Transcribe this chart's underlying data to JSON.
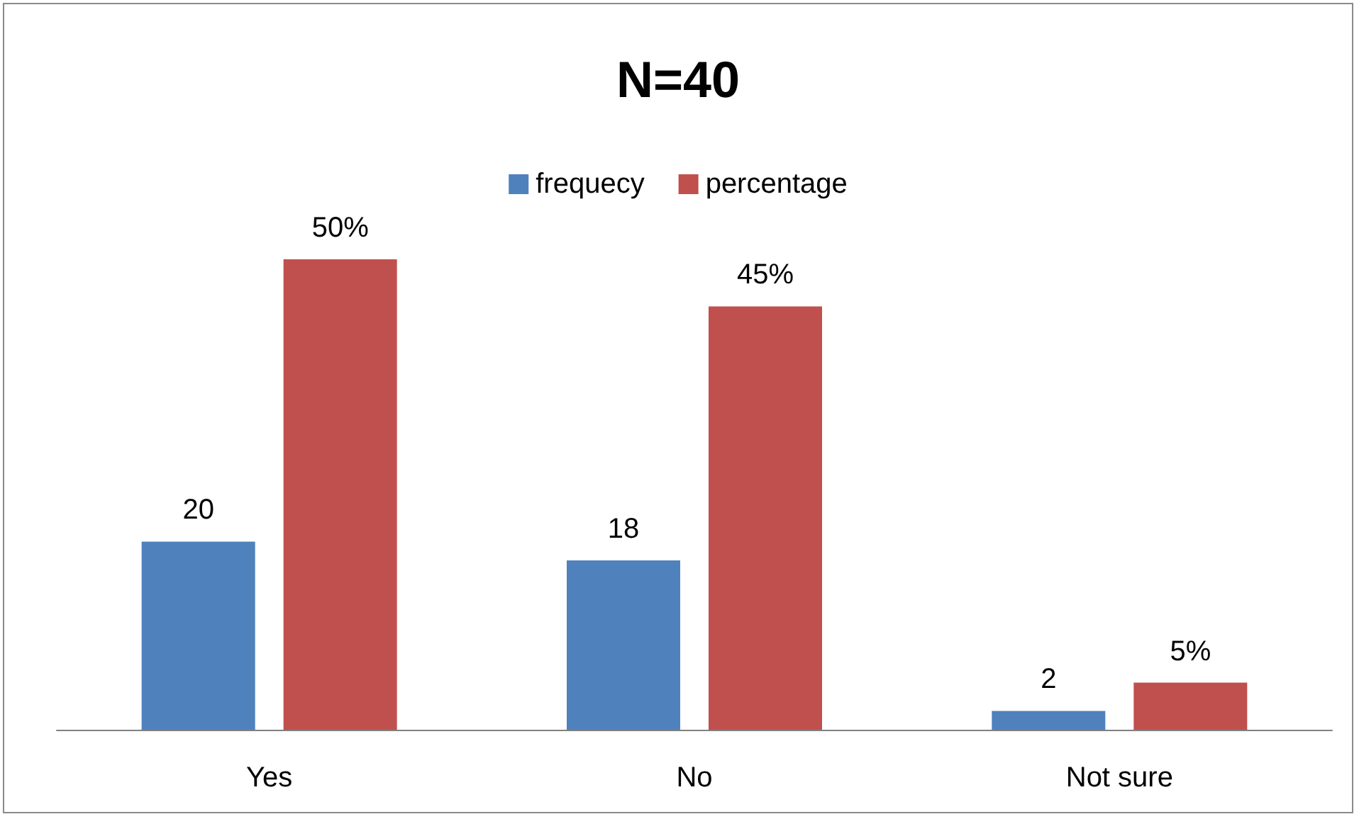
{
  "chart_data": {
    "type": "bar",
    "title": "N=40",
    "categories": [
      "Yes",
      "No",
      "Not sure"
    ],
    "series": [
      {
        "name": "frequecy",
        "color": "#4f81bd",
        "values": [
          20,
          18,
          2
        ],
        "value_labels": [
          "20",
          "18",
          "2"
        ]
      },
      {
        "name": "percentage",
        "color": "#c0504d",
        "values": [
          50,
          45,
          5
        ],
        "value_labels": [
          "50%",
          "45%",
          "5%"
        ]
      }
    ],
    "legend": "top"
  }
}
